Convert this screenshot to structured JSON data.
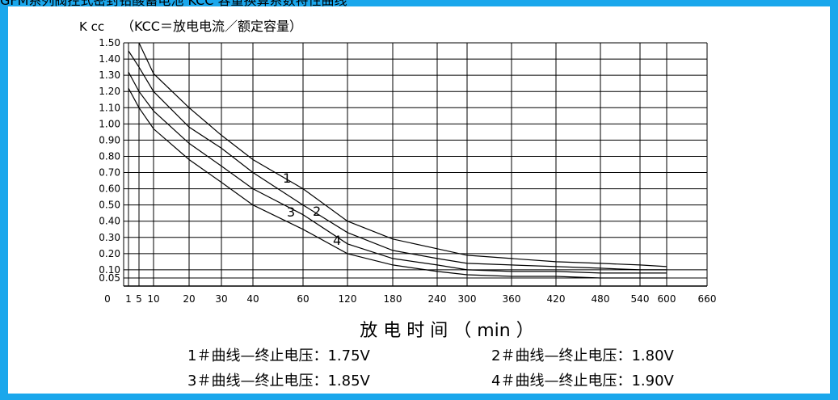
{
  "page": {
    "title_fragment": "GFM系列阀控式密封铅酸蓄电池 KCC 容量换算系数特性曲线"
  },
  "chart_data": {
    "type": "line",
    "ylabel": "K cc",
    "ylabel_note": "（KCC＝放电电流／额定容量）",
    "xlabel": "放 电 时 间 （ min ）",
    "grid": true,
    "legend_position": "bottom",
    "y_ticks": [
      "1.50",
      "1.40",
      "1.30",
      "1.20",
      "1.10",
      "1.00",
      "0.90",
      "0.80",
      "0.70",
      "0.60",
      "0.50",
      "0.40",
      "0.30",
      "0.20",
      "0.10",
      "0.05"
    ],
    "x_ticks": [
      "0",
      "1",
      "5",
      "10",
      "20",
      "30",
      "40",
      "60",
      "120",
      "180",
      "240",
      "300",
      "360",
      "420",
      "480",
      "540",
      "600",
      "660"
    ],
    "ylim": [
      0,
      1.5
    ],
    "series": [
      {
        "name": "1",
        "x": [
          5,
          10,
          20,
          30,
          40,
          60,
          120,
          180,
          240,
          300,
          360,
          420,
          480,
          540,
          600
        ],
        "y": [
          1.5,
          1.31,
          1.1,
          0.93,
          0.78,
          0.6,
          0.4,
          0.29,
          0.23,
          0.19,
          0.17,
          0.15,
          0.14,
          0.13,
          0.12
        ]
      },
      {
        "name": "2",
        "x": [
          1,
          5,
          10,
          20,
          30,
          40,
          60,
          120,
          180,
          240,
          300,
          360,
          420,
          480,
          540,
          600
        ],
        "y": [
          1.45,
          1.35,
          1.2,
          0.98,
          0.85,
          0.7,
          0.5,
          0.33,
          0.22,
          0.17,
          0.14,
          0.13,
          0.12,
          0.11,
          0.1,
          0.1
        ]
      },
      {
        "name": "3",
        "x": [
          1,
          5,
          10,
          20,
          30,
          40,
          60,
          120,
          180,
          240,
          300,
          360,
          420,
          480,
          540,
          600
        ],
        "y": [
          1.32,
          1.2,
          1.08,
          0.88,
          0.74,
          0.6,
          0.44,
          0.26,
          0.17,
          0.13,
          0.1,
          0.09,
          0.09,
          0.08,
          0.08,
          0.08
        ]
      },
      {
        "name": "4",
        "x": [
          1,
          5,
          10,
          20,
          30,
          40,
          60,
          120,
          180,
          240,
          300,
          360,
          420,
          480,
          540,
          600
        ],
        "y": [
          1.22,
          1.1,
          0.97,
          0.78,
          0.64,
          0.5,
          0.35,
          0.2,
          0.13,
          0.09,
          0.07,
          0.06,
          0.06,
          0.05,
          0.05,
          0.05
        ]
      }
    ],
    "curve_labels": [
      "1",
      "2",
      "3",
      "4"
    ],
    "legend": [
      "1＃曲线—终止电压：1.75V",
      "2＃曲线—终止电压：1.80V",
      "3＃曲线—终止电压：1.85V",
      "4＃曲线—终止电压：1.90V"
    ]
  }
}
